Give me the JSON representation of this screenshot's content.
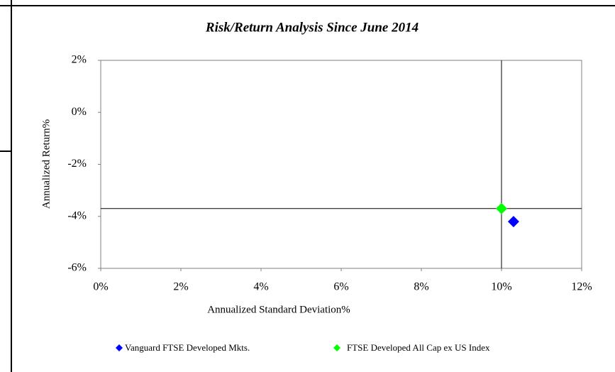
{
  "chart_data": {
    "type": "scatter",
    "title": "Risk/Return Analysis Since June 2014",
    "xlabel": "Annualized Standard Deviation%",
    "ylabel": "Annualized Return%",
    "xlim": [
      0,
      12
    ],
    "ylim": [
      -6,
      2
    ],
    "xticks": [
      {
        "value": 0,
        "label": "0%"
      },
      {
        "value": 2,
        "label": "2%"
      },
      {
        "value": 4,
        "label": "4%"
      },
      {
        "value": 6,
        "label": "6%"
      },
      {
        "value": 8,
        "label": "8%"
      },
      {
        "value": 10,
        "label": "10%"
      },
      {
        "value": 12,
        "label": "12%"
      }
    ],
    "yticks": [
      {
        "value": -6,
        "label": "-6%"
      },
      {
        "value": -4,
        "label": "-4%"
      },
      {
        "value": -2,
        "label": "-2%"
      },
      {
        "value": 0,
        "label": "0%"
      },
      {
        "value": 2,
        "label": "2%"
      }
    ],
    "series": [
      {
        "name": "Vanguard FTSE Developed Mkts.",
        "color": "#0000ff",
        "x": [
          10.3
        ],
        "values": [
          -4.2
        ]
      },
      {
        "name": "FTSE Developed All Cap ex US Index",
        "color": "#00ff00",
        "x": [
          10.0
        ],
        "values": [
          -3.7
        ]
      }
    ]
  }
}
